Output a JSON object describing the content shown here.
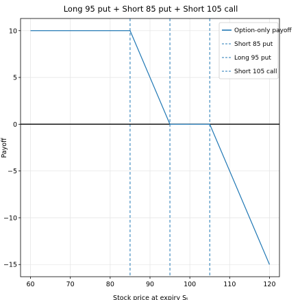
{
  "chart_data": {
    "type": "line",
    "title": "Long 95 put + Short 85 put + Short 105 call",
    "xlabel": "Stock price at expiry Sₜ",
    "ylabel": "Payoff",
    "xlim": [
      57.5,
      122.5
    ],
    "ylim": [
      -16.3,
      11.3
    ],
    "xticks": [
      60,
      70,
      80,
      90,
      100,
      110,
      120
    ],
    "yticks": [
      -15,
      -10,
      -5,
      0,
      5,
      10
    ],
    "grid": true,
    "zero_line": true,
    "legend_position": "top-right",
    "series": [
      {
        "name": "Option-only payoff",
        "style": "solid",
        "color": "#1f77b4",
        "x": [
          60,
          85,
          95,
          105,
          120
        ],
        "y": [
          10,
          10,
          0,
          0,
          -15
        ]
      }
    ],
    "vlines": [
      {
        "name": "Short 85 put",
        "x": 85,
        "style": "dashed",
        "color": "#1f77b4"
      },
      {
        "name": "Long 95 put",
        "x": 95,
        "style": "dashed",
        "color": "#1f77b4"
      },
      {
        "name": "Short 105 call",
        "x": 105,
        "style": "dashed",
        "color": "#1f77b4"
      }
    ]
  }
}
